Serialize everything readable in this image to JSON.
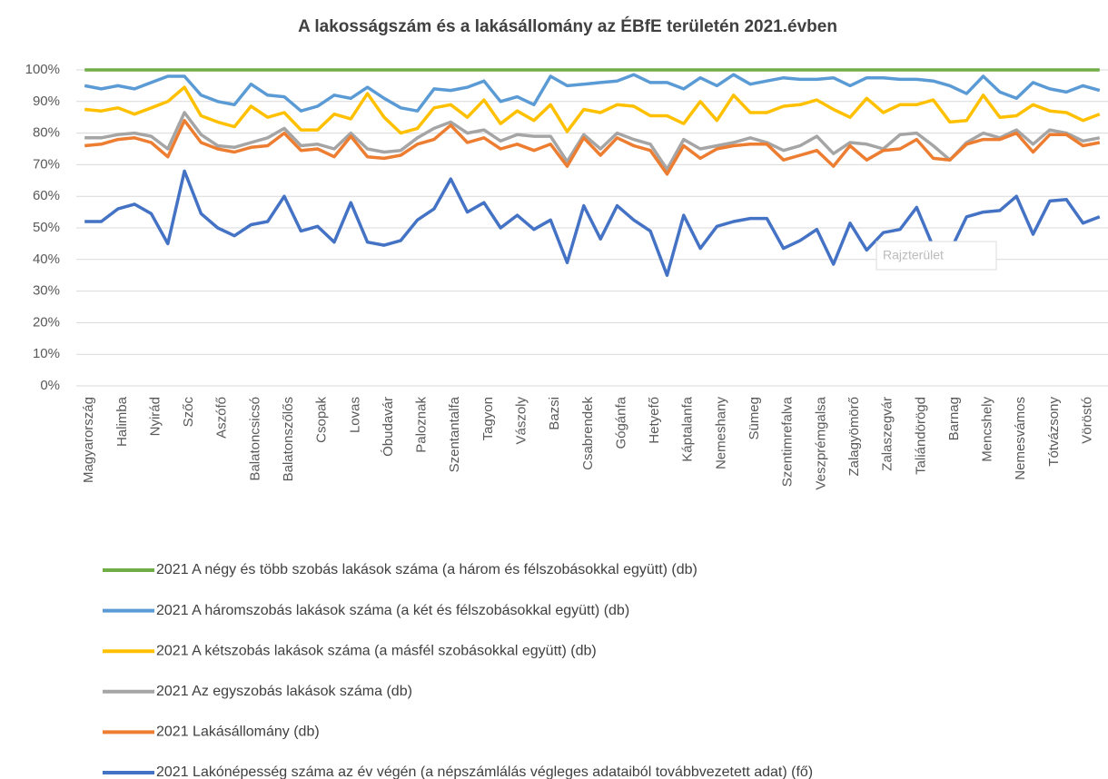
{
  "chart_data": {
    "type": "line",
    "title": "A lakosságszám és a lakásállomány az ÉBfE területén 2021.évben",
    "tooltip": "Rajzterület",
    "categories": [
      "Magyarország",
      null,
      "Halimba",
      null,
      "Nyirád",
      null,
      "Szőc",
      null,
      "Aszófő",
      null,
      "Balatoncsicsó",
      null,
      "Balatonszőlős",
      null,
      "Csopak",
      null,
      "Lovas",
      null,
      "Óbudavár",
      null,
      "Paloznak",
      null,
      "Szentantalfa",
      null,
      "Tagyon",
      null,
      "Vászoly",
      null,
      "Bazsi",
      null,
      "Csabrendek",
      null,
      "Gógánfa",
      null,
      "Hetyefő",
      null,
      "Káptalanfa",
      null,
      "Nemeshany",
      null,
      "Sümeg",
      null,
      "Szentimrefalva",
      null,
      "Veszprémgalsa",
      null,
      "Zalagyömörő",
      null,
      "Zalaszegvár",
      null,
      "Taliándörögd",
      null,
      "Barnag",
      null,
      "Mencshely",
      null,
      "Nemesvámos",
      null,
      "Tótvázsony",
      null,
      "Vöröstó",
      null
    ],
    "ylim": [
      0,
      100
    ],
    "yticks": [
      {
        "value": 0,
        "label": "0%"
      },
      {
        "value": 10,
        "label": "10%"
      },
      {
        "value": 20,
        "label": "20%"
      },
      {
        "value": 30,
        "label": "30%"
      },
      {
        "value": 40,
        "label": "40%"
      },
      {
        "value": 50,
        "label": "50%"
      },
      {
        "value": 60,
        "label": "60%"
      },
      {
        "value": 70,
        "label": "70%"
      },
      {
        "value": 80,
        "label": "80%"
      },
      {
        "value": 90,
        "label": "90%"
      },
      {
        "value": 100,
        "label": "100%"
      }
    ],
    "grid": true,
    "series": [
      {
        "name": "2021 A négy és több szobás lakások száma (a három és félszobásokkal együtt) (db)",
        "color": "#70ad47",
        "values": [
          100,
          100,
          100,
          100,
          100,
          100,
          100,
          100,
          100,
          100,
          100,
          100,
          100,
          100,
          100,
          100,
          100,
          100,
          100,
          100,
          100,
          100,
          100,
          100,
          100,
          100,
          100,
          100,
          100,
          100,
          100,
          100,
          100,
          100,
          100,
          100,
          100,
          100,
          100,
          100,
          100,
          100,
          100,
          100,
          100,
          100,
          100,
          100,
          100,
          100,
          100,
          100,
          100,
          100,
          100,
          100,
          100,
          100,
          100,
          100,
          100,
          100
        ]
      },
      {
        "name": "2021 A háromszobás lakások száma (a két és félszobásokkal együtt) (db)",
        "color": "#5b9bd5",
        "values": [
          95,
          94,
          95,
          94,
          96,
          98,
          98,
          92,
          90,
          89,
          95.5,
          92,
          91.5,
          87,
          88.5,
          92,
          91,
          94.5,
          91,
          88,
          87,
          94,
          93.5,
          94.5,
          96.5,
          90,
          91.5,
          89,
          98,
          95,
          95.5,
          96,
          96.5,
          98.5,
          96,
          96,
          94,
          97.5,
          95,
          98.5,
          95.5,
          96.5,
          97.5,
          97,
          97,
          97.5,
          95,
          97.5,
          97.5,
          97,
          97,
          96.5,
          95,
          92.5,
          98,
          93,
          91,
          96,
          94,
          93,
          95,
          93.5
        ]
      },
      {
        "name": "2021 A kétszobás lakások száma (a másfél szobásokkal együtt) (db)",
        "color": "#ffc000",
        "values": [
          87.5,
          87,
          88,
          86,
          88,
          90,
          94.5,
          85.5,
          83.5,
          82,
          88.5,
          85,
          86.5,
          81,
          81,
          86,
          84.5,
          92.5,
          85,
          80,
          81.5,
          88,
          89,
          85,
          90.5,
          83,
          87,
          84,
          89,
          80.5,
          87.5,
          86.5,
          89,
          88.5,
          85.5,
          85.5,
          83,
          90,
          84,
          92,
          86.5,
          86.5,
          88.5,
          89,
          90.5,
          87.5,
          85,
          91,
          86.5,
          89,
          89,
          90.5,
          83.5,
          84,
          92,
          85,
          85.5,
          89,
          87,
          86.5,
          84,
          86
        ]
      },
      {
        "name": "2021 Az egyszobás lakások száma (db)",
        "color": "#a5a5a5",
        "values": [
          78.5,
          78.5,
          79.5,
          80,
          79,
          75,
          86.5,
          79.5,
          76,
          75.5,
          77,
          78.5,
          81.5,
          76,
          76.5,
          75,
          80,
          75,
          74,
          74.5,
          78.5,
          81.5,
          83.5,
          80,
          81,
          77.5,
          79.5,
          79,
          79,
          71,
          79.5,
          75,
          80,
          78,
          76.5,
          68.5,
          78,
          75,
          76,
          77,
          78.5,
          77,
          74.5,
          76,
          79,
          73.5,
          77,
          76.5,
          75,
          79.5,
          80,
          76,
          71.5,
          77,
          80,
          78.5,
          81,
          76.5,
          81,
          80,
          77.5,
          78.5
        ]
      },
      {
        "name": "2021 Lakásállomány (db)",
        "color": "#ed7d31",
        "values": [
          76,
          76.5,
          78,
          78.5,
          77,
          72.5,
          84,
          77,
          75,
          74,
          75.5,
          76,
          80,
          74.5,
          75,
          72.5,
          79,
          72.5,
          72,
          73,
          76.5,
          78,
          82.5,
          77,
          78.5,
          75,
          76.5,
          74.5,
          76.5,
          69.5,
          78.5,
          73,
          78.5,
          76,
          74.5,
          67,
          76,
          72,
          75,
          76,
          76.5,
          76.5,
          71.5,
          73,
          74.5,
          69.5,
          76,
          71.5,
          74.5,
          75,
          78,
          72,
          71.5,
          76.5,
          78,
          78,
          80,
          74,
          79.5,
          79.5,
          76,
          77
        ]
      },
      {
        "name": "2021 Lakónépesség száma az év végén (a népszámlálás végleges adataiból továbbvezetett adat) (fő)",
        "color": "#4472c4",
        "values": [
          52,
          52,
          56,
          57.5,
          54.5,
          45,
          68,
          54.5,
          50,
          47.5,
          51,
          52,
          60,
          49,
          50.5,
          45.5,
          58,
          45.5,
          44.5,
          46,
          52.5,
          56,
          65.5,
          55,
          58,
          50,
          54,
          49.5,
          52.5,
          39,
          57,
          46.5,
          57,
          52.5,
          49,
          35,
          54,
          43.5,
          50.5,
          52,
          53,
          53,
          43.5,
          46,
          49.5,
          38.5,
          51.5,
          43,
          48.5,
          49.5,
          56.5,
          44,
          42.5,
          53.5,
          55,
          55.5,
          60,
          48,
          58.5,
          59,
          51.5,
          53.5
        ]
      }
    ]
  }
}
